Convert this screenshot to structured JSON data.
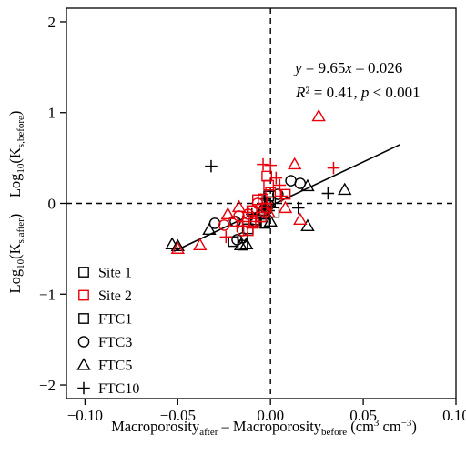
{
  "chart_data": {
    "type": "scatter",
    "title": "",
    "xlabel": {
      "main": "Macroporosity",
      "sub1": "after",
      "mid": " – Macroporosity",
      "sub2": "before",
      "unit_open": " (cm",
      "sup1": "3",
      "unit_mid": " cm",
      "sup2": "−3",
      "unit_close": ")"
    },
    "ylabel": {
      "p1": "Log",
      "sub1": "10",
      "p2": "(K",
      "sub2": "s,after",
      "p3": ") − Log",
      "sub3": "10",
      "p4": "(K",
      "sub4": "s,before",
      "p5": ")"
    },
    "xlim": [
      -0.11,
      0.1
    ],
    "ylim": [
      -2.15,
      2.15
    ],
    "xticks": [
      -0.1,
      -0.05,
      0.0,
      0.05,
      0.1
    ],
    "xtick_labels": [
      "−0.10",
      "−0.05",
      "0.00",
      "0.05",
      "0.10"
    ],
    "yticks": [
      -2,
      -1,
      0,
      1,
      2
    ],
    "ytick_labels": [
      "−2",
      "−1",
      "0",
      "1",
      "2"
    ],
    "grid": false,
    "reference_lines": {
      "x": 0,
      "y": 0,
      "style": "dashed"
    },
    "regression": {
      "slope": 9.65,
      "intercept": -0.026,
      "x_range": [
        -0.052,
        0.07
      ],
      "equation_parts": {
        "y": "y",
        "eq": " = 9.65",
        "x": "x",
        "rest": " – 0.026"
      },
      "stats_parts": {
        "r": "R",
        "r2": "² = 0.41, ",
        "p": "p",
        "rest": " < 0.001"
      }
    },
    "legend": {
      "position": "bottom-left",
      "entries": [
        {
          "label": "Site 1",
          "marker": "square",
          "color": "#000000"
        },
        {
          "label": "Site 2",
          "marker": "square",
          "color": "#e8000b"
        },
        {
          "label": "FTC1",
          "marker": "square",
          "color": "#000000"
        },
        {
          "label": "FTC3",
          "marker": "circle",
          "color": "#000000"
        },
        {
          "label": "FTC5",
          "marker": "triangle",
          "color": "#000000"
        },
        {
          "label": "FTC10",
          "marker": "plus",
          "color": "#000000"
        }
      ]
    },
    "colors": {
      "site1": "#000000",
      "site2": "#e8000b"
    },
    "series": [
      {
        "site": "Site 1",
        "ftc": "FTC1",
        "marker": "square",
        "color": "#000000",
        "points": [
          [
            -0.001,
            0.08
          ],
          [
            0.0,
            0.02
          ],
          [
            -0.002,
            -0.05
          ],
          [
            -0.004,
            -0.12
          ],
          [
            -0.003,
            -0.22
          ],
          [
            -0.008,
            -0.18
          ],
          [
            -0.012,
            -0.28
          ],
          [
            -0.015,
            -0.46
          ],
          [
            -0.02,
            -0.42
          ],
          [
            0.002,
            -0.1
          ]
        ]
      },
      {
        "site": "Site 1",
        "ftc": "FTC3",
        "marker": "circle",
        "color": "#000000",
        "points": [
          [
            0.011,
            0.25
          ],
          [
            0.016,
            0.22
          ],
          [
            0.004,
            0.1
          ],
          [
            -0.001,
            -0.02
          ],
          [
            -0.004,
            -0.08
          ],
          [
            -0.008,
            -0.2
          ],
          [
            -0.019,
            -0.2
          ],
          [
            -0.03,
            -0.22
          ],
          [
            -0.015,
            -0.38
          ],
          [
            -0.018,
            -0.4
          ]
        ]
      },
      {
        "site": "Site 1",
        "ftc": "FTC5",
        "marker": "triangle",
        "color": "#000000",
        "points": [
          [
            0.04,
            0.15
          ],
          [
            0.02,
            0.19
          ],
          [
            0.02,
            -0.25
          ],
          [
            -0.033,
            -0.29
          ],
          [
            -0.05,
            -0.47
          ],
          [
            -0.053,
            -0.45
          ],
          [
            -0.016,
            -0.46
          ],
          [
            -0.013,
            -0.45
          ],
          [
            0.0,
            -0.2
          ],
          [
            -0.005,
            -0.08
          ]
        ]
      },
      {
        "site": "Site 1",
        "ftc": "FTC10",
        "marker": "plus",
        "color": "#000000",
        "points": [
          [
            -0.032,
            0.41
          ],
          [
            0.031,
            0.11
          ],
          [
            0.015,
            -0.05
          ],
          [
            -0.001,
            -0.08
          ],
          [
            -0.003,
            0.05
          ],
          [
            -0.005,
            -0.2
          ],
          [
            -0.015,
            -0.25
          ],
          [
            -0.01,
            -0.12
          ]
        ]
      },
      {
        "site": "Site 2",
        "ftc": "FTC1",
        "marker": "square",
        "color": "#e8000b",
        "points": [
          [
            -0.002,
            0.3
          ],
          [
            -0.001,
            0.2
          ],
          [
            -0.007,
            0.04
          ],
          [
            -0.01,
            -0.08
          ],
          [
            -0.005,
            -0.15
          ],
          [
            -0.009,
            -0.22
          ],
          [
            -0.004,
            0.05
          ],
          [
            0.008,
            0.1
          ],
          [
            0.0,
            0.12
          ],
          [
            -0.012,
            -0.3
          ]
        ]
      },
      {
        "site": "Site 2",
        "ftc": "FTC3",
        "marker": "circle",
        "color": "#e8000b",
        "points": [
          [
            -0.007,
            0.0
          ],
          [
            -0.002,
            -0.05
          ],
          [
            -0.012,
            -0.12
          ],
          [
            -0.017,
            -0.14
          ],
          [
            -0.02,
            -0.2
          ],
          [
            -0.025,
            -0.24
          ],
          [
            -0.009,
            -0.2
          ],
          [
            -0.003,
            -0.1
          ],
          [
            -0.015,
            -0.3
          ]
        ]
      },
      {
        "site": "Site 2",
        "ftc": "FTC5",
        "marker": "triangle",
        "color": "#e8000b",
        "points": [
          [
            0.026,
            0.96
          ],
          [
            0.013,
            0.43
          ],
          [
            0.016,
            -0.18
          ],
          [
            0.008,
            -0.05
          ],
          [
            -0.017,
            -0.04
          ],
          [
            -0.023,
            -0.12
          ],
          [
            -0.038,
            -0.46
          ],
          [
            -0.05,
            -0.5
          ],
          [
            -0.001,
            -0.1
          ]
        ]
      },
      {
        "site": "Site 2",
        "ftc": "FTC10",
        "marker": "plus",
        "color": "#e8000b",
        "points": [
          [
            -0.004,
            0.43
          ],
          [
            0.0,
            0.42
          ],
          [
            0.034,
            0.39
          ],
          [
            0.003,
            0.28
          ],
          [
            0.005,
            0.2
          ],
          [
            0.006,
            0.08
          ],
          [
            -0.002,
            0.0
          ],
          [
            -0.008,
            -0.2
          ],
          [
            -0.015,
            -0.2
          ],
          [
            -0.024,
            -0.37
          ],
          [
            -0.018,
            -0.25
          ],
          [
            -0.012,
            -0.1
          ]
        ]
      }
    ]
  }
}
